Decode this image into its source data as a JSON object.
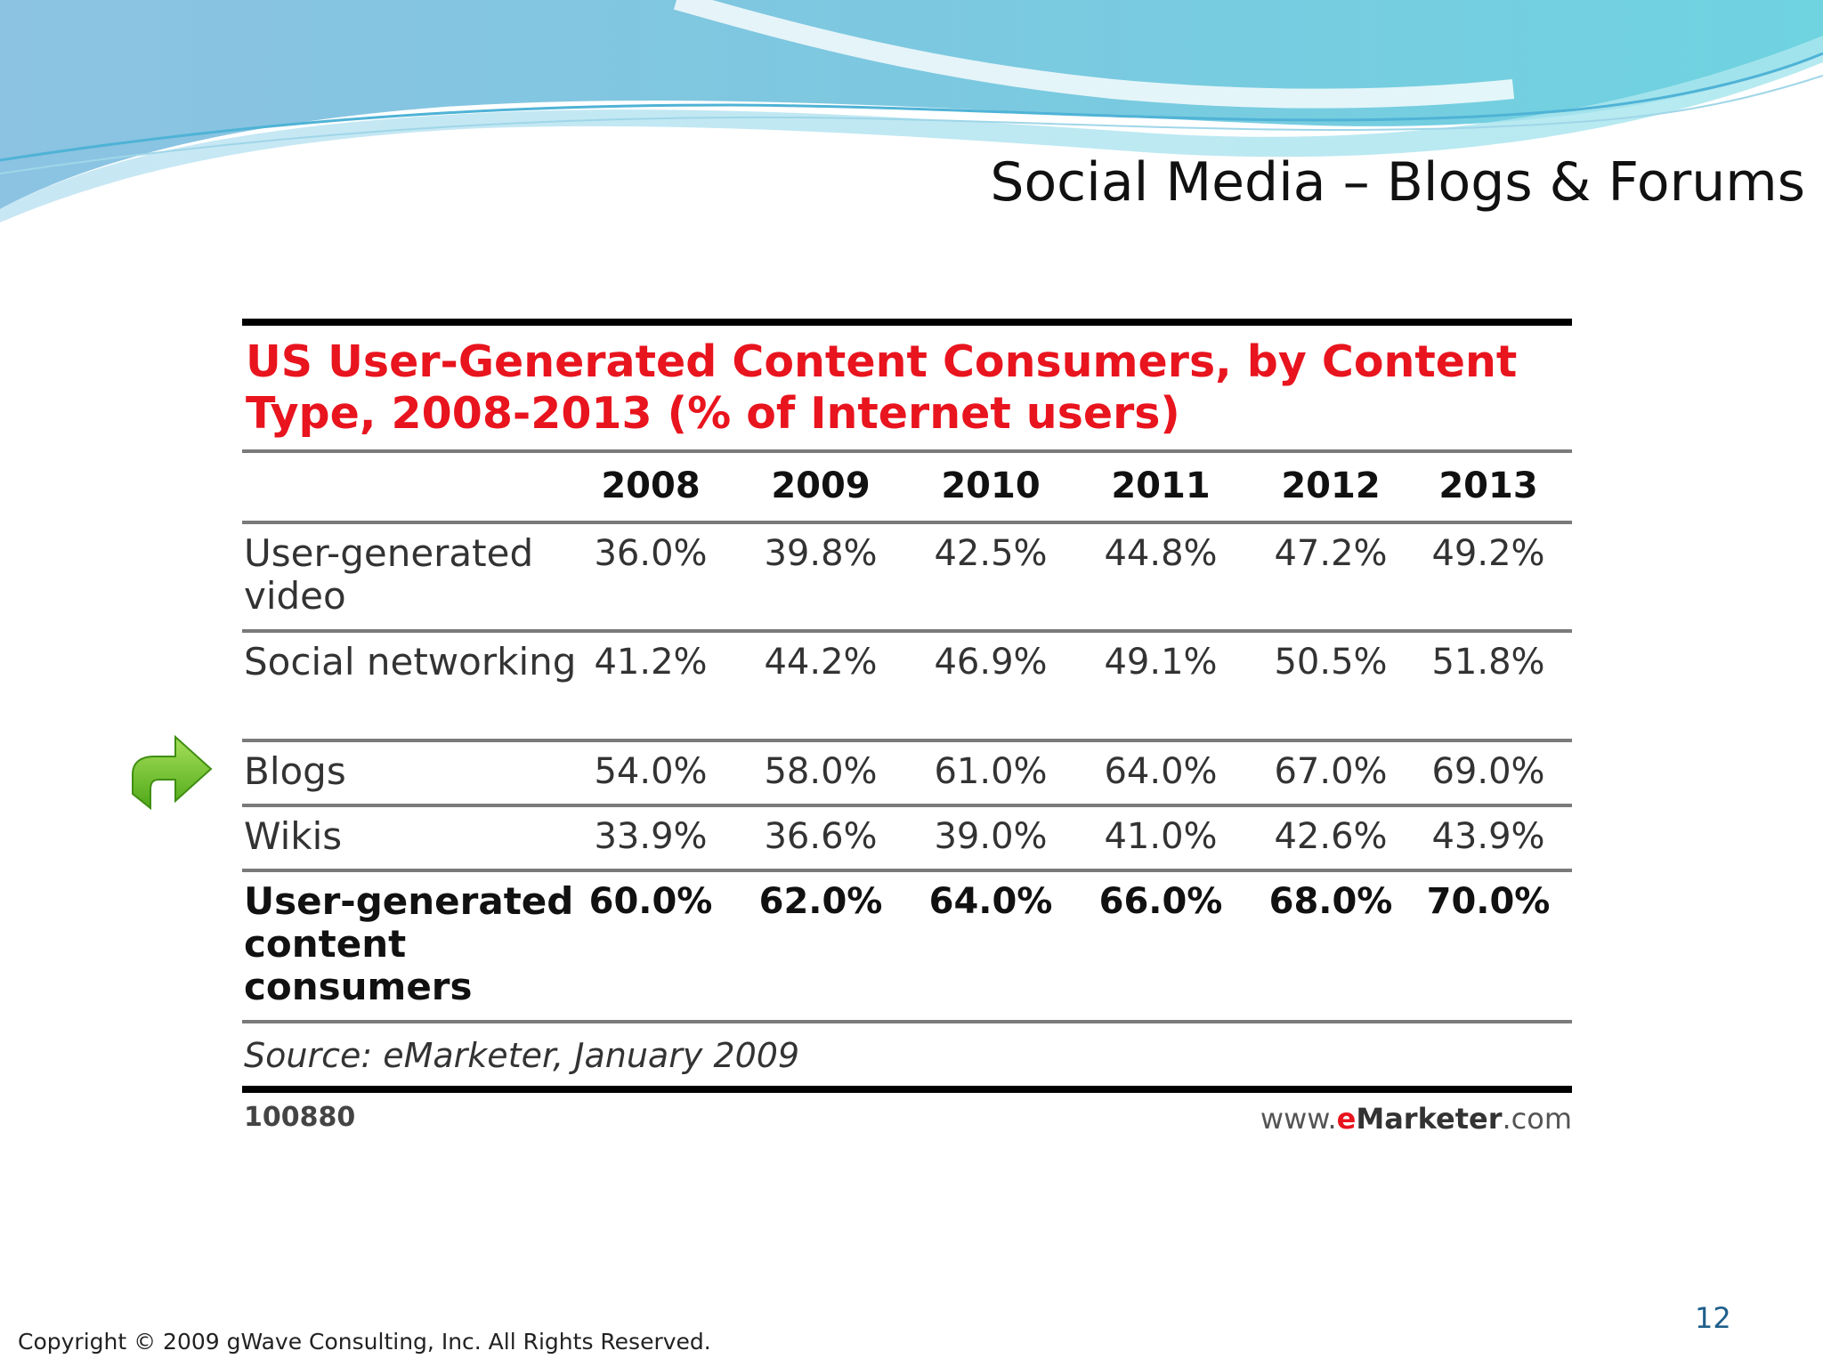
{
  "slide": {
    "title": "Social Media – Blogs & Forums",
    "page_number": "12",
    "copyright": "Copyright © 2009 gWave Consulting, Inc. All Rights Reserved."
  },
  "table": {
    "title": "US User-Generated Content Consumers, by Content Type, 2008-2013 (% of Internet users)",
    "years": [
      "2008",
      "2009",
      "2010",
      "2011",
      "2012",
      "2013"
    ],
    "rows": [
      {
        "label": "User-generated video",
        "values": [
          "36.0%",
          "39.8%",
          "42.5%",
          "44.8%",
          "47.2%",
          "49.2%"
        ]
      },
      {
        "label": "Social networking",
        "values": [
          "41.2%",
          "44.2%",
          "46.9%",
          "49.1%",
          "50.5%",
          "51.8%"
        ]
      },
      {
        "label": "Blogs",
        "values": [
          "54.0%",
          "58.0%",
          "61.0%",
          "64.0%",
          "67.0%",
          "69.0%"
        ]
      },
      {
        "label": "Wikis",
        "values": [
          "33.9%",
          "36.6%",
          "39.0%",
          "41.0%",
          "42.6%",
          "43.9%"
        ]
      },
      {
        "label": "User-generated content consumers",
        "values": [
          "60.0%",
          "62.0%",
          "64.0%",
          "66.0%",
          "68.0%",
          "70.0%"
        ]
      }
    ],
    "source": "Source: eMarketer, January 2009",
    "chart_id": "100880",
    "brand": {
      "prefix": "www.",
      "accent": "e",
      "name": "Marketer",
      "suffix": ".com"
    }
  },
  "highlight": {
    "icon": "green-arrow-icon",
    "row": "Blogs"
  },
  "colors": {
    "title_red": "#e8141e",
    "page_number_blue": "#1f5f8b",
    "arrow_green": "#6cc02a"
  }
}
